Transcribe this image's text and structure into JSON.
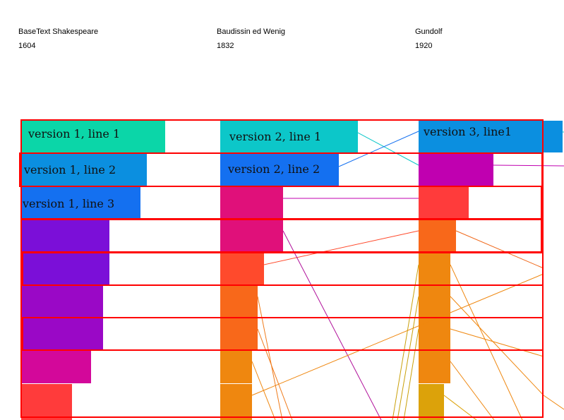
{
  "columns": [
    {
      "title": "BaseText Shakespeare",
      "year": "1604"
    },
    {
      "title": "Baudissin ed Wenig",
      "year": "1832"
    },
    {
      "title": "Gundolf",
      "year": "1920"
    }
  ],
  "labels": {
    "col0": [
      "version 1, line 1",
      "version 1, line 2",
      "version 1, line 3"
    ],
    "col1": [
      "version 2, line 1",
      "version 2, line 2"
    ],
    "col2": [
      "version 3, line1"
    ]
  },
  "colors": {
    "frame": "#ff0000",
    "teal": "#0bd6a8",
    "cyan": "#0cc7c9",
    "blue": "#0b8fe0",
    "royal": "#1470f0",
    "magenta": "#c000b0",
    "pink": "#e0107a",
    "red": "#ff3b3b",
    "violet": "#7b0fd8",
    "purple": "#9a08c6",
    "orange_red": "#ff4a2c",
    "orange": "#f8681a",
    "amber": "#ef870f",
    "mustard": "#dca20a"
  }
}
